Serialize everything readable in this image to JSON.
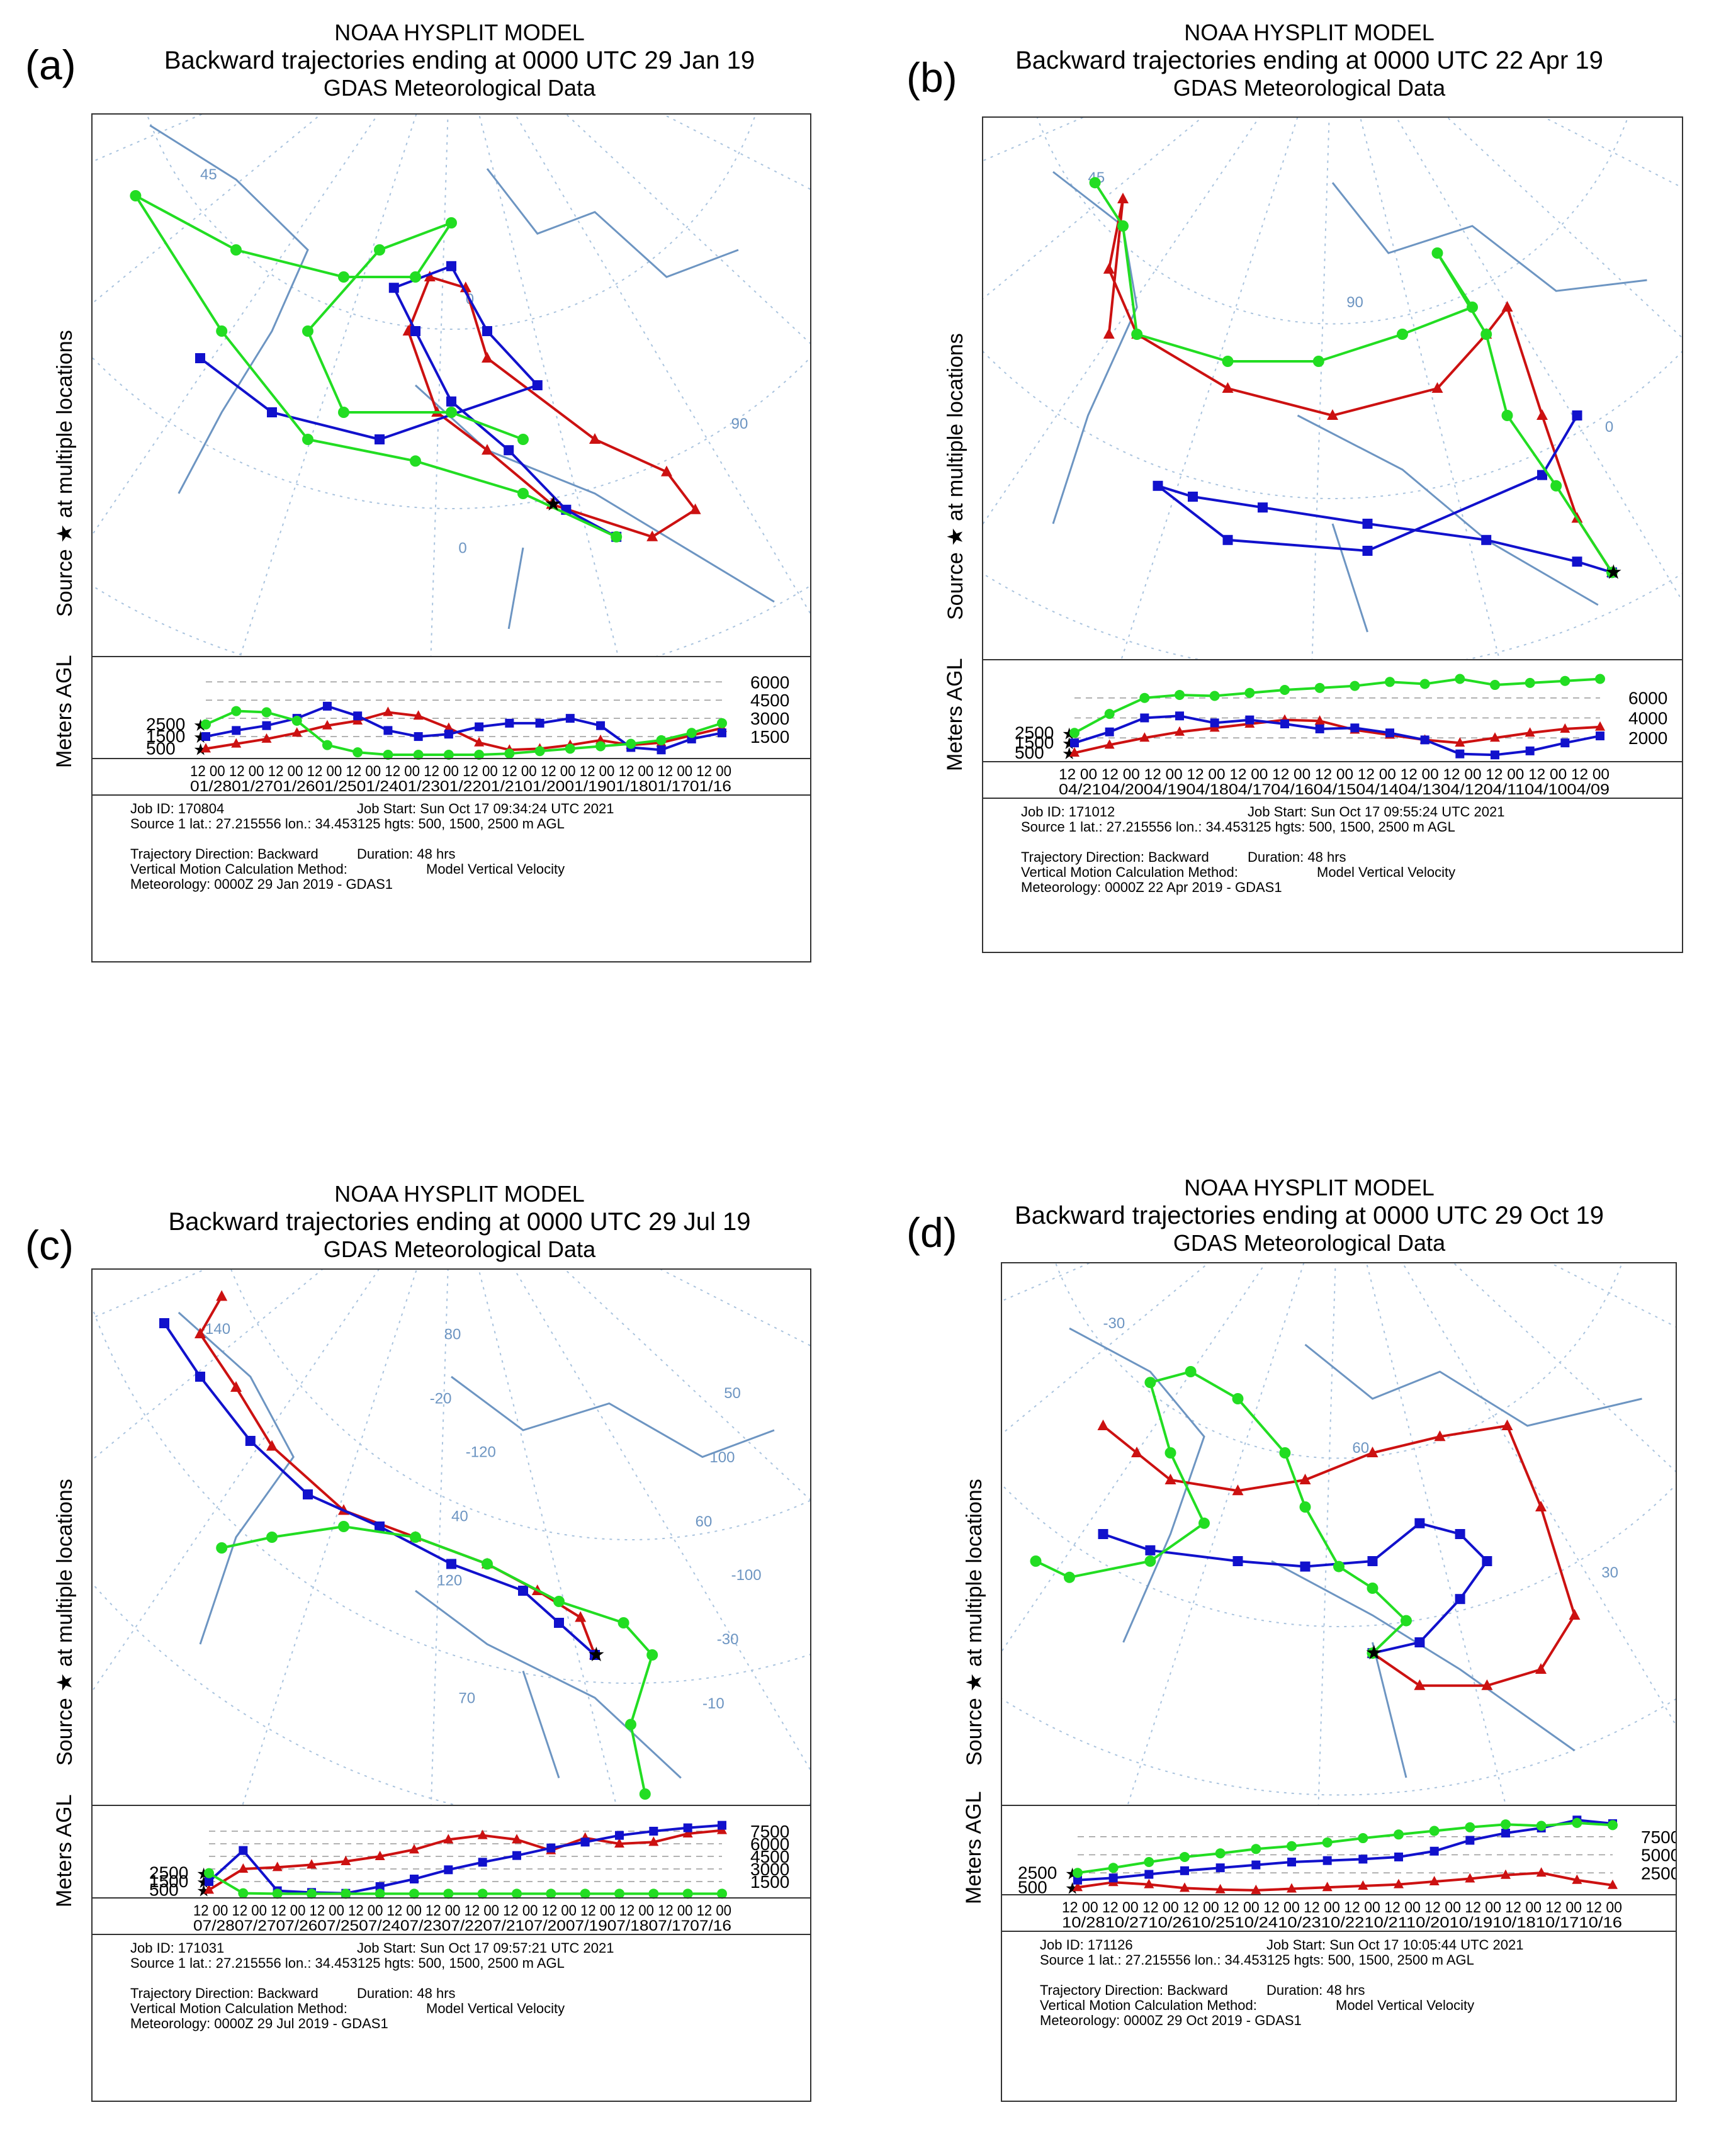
{
  "panels": [
    {
      "label": "(a)",
      "title1": "NOAA HYSPLIT MODEL",
      "title2": "Backward trajectories ending at 0000 UTC 29 Jan 19",
      "title3": "GDAS Meteorological Data",
      "ylabel_map": "Source ★  at multiple locations",
      "ylabel_alt": "Meters AGL",
      "map_labels": [
        "45",
        "0",
        "90",
        "0"
      ],
      "job_id": "Job ID: 170804",
      "job_start": "Job Start: Sun Oct 17 09:34:24 UTC 2021",
      "source": "Source 1 lat.: 27.215556  lon.: 34.453125  hgts: 500, 1500, 2500 m AGL",
      "direction": "Trajectory Direction: Backward",
      "duration": "Duration: 48 hrs",
      "vmethod": "Vertical Motion Calculation Method:",
      "vmethod_val": "Model Vertical Velocity",
      "meteo": "Meteorology: 0000Z 29 Jan 2019 - GDAS1",
      "chart_data": {
        "type": "line",
        "title": "Backward trajectories ending at 0000 UTC 29 Jan 19",
        "ylabel": "Meters AGL",
        "start_heights": [
          "2500",
          "1500",
          "500"
        ],
        "right_ticks": [
          "6000",
          "4500",
          "3000",
          "1500"
        ],
        "time_ticks": "12 00 12 00 12 00 12 00 12 00 12 00 12 00 12 00 12 00 12 00 12 00 12 00 12 00 12 00",
        "date_ticks": "01/2801/2701/2601/2501/2401/2301/2201/2101/2001/1901/1801/1701/16",
        "ylim": [
          0,
          7000
        ],
        "series": [
          {
            "name": "500 m",
            "color": "#cc1111",
            "marker": "triangle",
            "values": [
              500,
              900,
              1300,
              1800,
              2400,
              2800,
              3500,
              3200,
              2200,
              1000,
              400,
              500,
              800,
              1200,
              800,
              1000,
              1600,
              2200
            ]
          },
          {
            "name": "1500 m",
            "color": "#1111cc",
            "marker": "square",
            "values": [
              1500,
              2000,
              2400,
              3000,
              4000,
              3200,
              2000,
              1500,
              1700,
              2300,
              2600,
              2600,
              3000,
              2400,
              600,
              400,
              1300,
              1800
            ]
          },
          {
            "name": "2500 m",
            "color": "#22dd22",
            "marker": "circle",
            "values": [
              2500,
              3600,
              3500,
              2800,
              800,
              200,
              0,
              0,
              0,
              0,
              100,
              300,
              500,
              700,
              900,
              1200,
              1800,
              2600
            ]
          }
        ]
      }
    },
    {
      "label": "(b)",
      "title1": "NOAA HYSPLIT MODEL",
      "title2": "Backward trajectories ending at 0000 UTC 22 Apr 19",
      "title3": "GDAS Meteorological Data",
      "ylabel_map": "Source ★  at multiple locations",
      "ylabel_alt": "Meters AGL",
      "map_labels": [
        "45",
        "90",
        "0"
      ],
      "job_id": "Job ID: 171012",
      "job_start": "Job Start: Sun Oct 17 09:55:24 UTC 2021",
      "source": "Source 1 lat.: 27.215556  lon.: 34.453125  hgts: 500, 1500, 2500 m AGL",
      "direction": "Trajectory Direction: Backward",
      "duration": "Duration: 48 hrs",
      "vmethod": "Vertical Motion Calculation Method:",
      "vmethod_val": "Model Vertical Velocity",
      "meteo": "Meteorology: 0000Z 22 Apr 2019 - GDAS1",
      "chart_data": {
        "type": "line",
        "title": "Backward trajectories ending at 0000 UTC 22 Apr 19",
        "ylabel": "Meters AGL",
        "start_heights": [
          "2500",
          "1500",
          "500"
        ],
        "right_ticks": [
          "6000",
          "4000",
          "2000"
        ],
        "time_ticks": "12 00 12 00 12 00 12 00 12 00 12 00 12 00 12 00 12 00 12 00 12 00 12 00 12 00",
        "date_ticks": "04/2104/2004/1904/1804/1704/1604/1504/1404/1304/1204/1104/1004/09",
        "ylim": [
          0,
          8500
        ],
        "series": [
          {
            "name": "500 m",
            "color": "#cc1111",
            "marker": "triangle",
            "values": [
              500,
              1300,
              2000,
              2600,
              3000,
              3400,
              3800,
              3700,
              2800,
              2300,
              1800,
              1500,
              2000,
              2500,
              2900,
              3100
            ]
          },
          {
            "name": "1500 m",
            "color": "#1111cc",
            "marker": "square",
            "values": [
              1500,
              2600,
              4000,
              4200,
              3500,
              3800,
              3400,
              2900,
              3000,
              2500,
              1800,
              400,
              300,
              700,
              1500,
              2200
            ]
          },
          {
            "name": "2500 m",
            "color": "#22dd22",
            "marker": "circle",
            "values": [
              2500,
              4400,
              6000,
              6300,
              6200,
              6500,
              6800,
              7000,
              7200,
              7600,
              7400,
              7900,
              7300,
              7500,
              7700,
              7900
            ]
          }
        ]
      }
    },
    {
      "label": "(c)",
      "title1": "NOAA HYSPLIT MODEL",
      "title2": "Backward trajectories ending at 0000 UTC 29 Jul 19",
      "title3": "GDAS Meteorological Data",
      "ylabel_map": "Source ★  at multiple locations",
      "ylabel_alt": "Meters AGL",
      "map_labels": [
        "-140",
        "-120",
        "-100",
        "70",
        "50",
        "40",
        "-30",
        "80",
        "100",
        "120",
        "-10",
        "-20",
        "60"
      ],
      "job_id": "Job ID: 171031",
      "job_start": "Job Start: Sun Oct 17 09:57:21 UTC 2021",
      "source": "Source 1 lat.: 27.215556  lon.: 34.453125  hgts: 500, 1500, 2500 m AGL",
      "direction": "Trajectory Direction: Backward",
      "duration": "Duration: 48 hrs",
      "vmethod": "Vertical Motion Calculation Method:",
      "vmethod_val": "Model Vertical Velocity",
      "meteo": "Meteorology: 0000Z 29 Jul 2019 - GDAS1",
      "chart_data": {
        "type": "line",
        "title": "Backward trajectories ending at 0000 UTC 29 Jul 19",
        "ylabel": "Meters AGL",
        "start_heights": [
          "2500",
          "1500",
          "500"
        ],
        "right_ticks": [
          "7500",
          "6000",
          "4500",
          "3000",
          "1500"
        ],
        "time_ticks": "12 00 12 00 12 00 12 00 12 00 12 00 12 00 12 00 12 00 12 00 12 00 12 00 12 00 12 00",
        "date_ticks": "07/2807/2707/2607/2507/2407/2307/2207/2107/2007/1907/1807/1707/16",
        "ylim": [
          0,
          9000
        ],
        "series": [
          {
            "name": "500 m",
            "color": "#cc1111",
            "marker": "triangle",
            "values": [
              500,
              3000,
              3200,
              3500,
              3900,
              4500,
              5300,
              6500,
              7000,
              6500,
              5200,
              6700,
              6000,
              6200,
              7200,
              7600
            ]
          },
          {
            "name": "1500 m",
            "color": "#1111cc",
            "marker": "square",
            "values": [
              1500,
              5200,
              400,
              200,
              100,
              900,
              1800,
              2900,
              3800,
              4600,
              5500,
              6200,
              7000,
              7500,
              7900,
              8200
            ]
          },
          {
            "name": "2500 m",
            "color": "#22dd22",
            "marker": "circle",
            "values": [
              2500,
              100,
              50,
              50,
              50,
              50,
              50,
              50,
              50,
              50,
              50,
              50,
              50,
              50,
              50,
              50
            ]
          }
        ]
      }
    },
    {
      "label": "(d)",
      "title1": "NOAA HYSPLIT MODEL",
      "title2": "Backward trajectories ending at 0000 UTC 29 Oct 19",
      "title3": "GDAS Meteorological Data",
      "ylabel_map": "Source ★  at multiple locations",
      "ylabel_alt": "Meters AGL",
      "map_labels": [
        "-30",
        "60",
        "30"
      ],
      "job_id": "Job ID: 171126",
      "job_start": "Job Start: Sun Oct 17 10:05:44 UTC 2021",
      "source": "Source 1 lat.: 27.215556  lon.: 34.453125  hgts: 500, 1500, 2500 m AGL",
      "direction": "Trajectory Direction: Backward",
      "duration": "Duration: 48 hrs",
      "vmethod": "Vertical Motion Calculation Method:",
      "vmethod_val": "Model Vertical Velocity",
      "meteo": "Meteorology: 0000Z 29 Oct 2019 - GDAS1",
      "chart_data": {
        "type": "line",
        "title": "Backward trajectories ending at 0000 UTC 29 Oct 19",
        "ylabel": "Meters AGL",
        "start_heights": [
          "2500",
          "500"
        ],
        "right_ticks": [
          "7500",
          "5000",
          "2500"
        ],
        "time_ticks": "12 00 12 00 12 00 12 00 12 00 12 00 12 00 12 00 12 00 12 00 12 00 12 00 12 00 12 00",
        "date_ticks": "10/2810/2710/2610/2510/2410/2310/2210/2110/2010/1910/1810/1710/16",
        "ylim": [
          0,
          10000
        ],
        "series": [
          {
            "name": "500 m",
            "color": "#cc1111",
            "marker": "triangle",
            "values": [
              500,
              1200,
              900,
              400,
              200,
              100,
              300,
              500,
              700,
              900,
              1300,
              1700,
              2200,
              2500,
              1500,
              800
            ]
          },
          {
            "name": "1500 m",
            "color": "#1111cc",
            "marker": "square",
            "values": [
              1500,
              1800,
              2300,
              2800,
              3200,
              3600,
              4000,
              4200,
              4400,
              4700,
              5500,
              7000,
              8000,
              8700,
              9800,
              9300
            ]
          },
          {
            "name": "2500 m",
            "color": "#22dd22",
            "marker": "circle",
            "values": [
              2500,
              3200,
              4000,
              4700,
              5200,
              5800,
              6200,
              6700,
              7300,
              7800,
              8300,
              8800,
              9200,
              9000,
              9400,
              9100
            ]
          }
        ]
      }
    }
  ]
}
